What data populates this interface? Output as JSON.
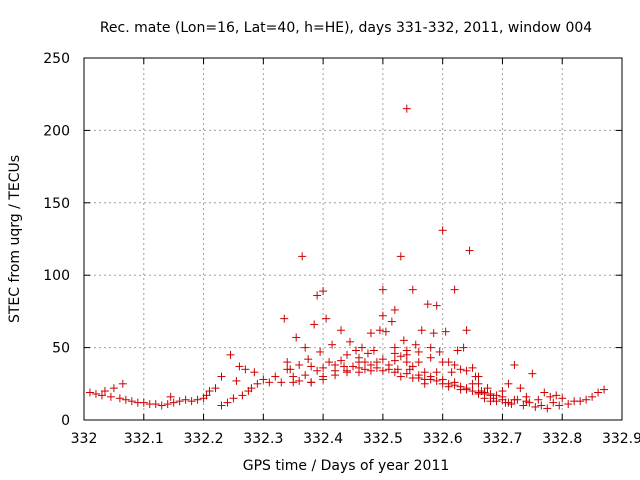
{
  "chart_data": {
    "type": "scatter",
    "title": "Rec. mate (Lon=16, Lat=40, h=HE), days 331-332, 2011, window 004",
    "xlabel": "GPS time / Days of year 2011",
    "ylabel": "STEC from uqrg / TECUs",
    "xlim": [
      332,
      332.9
    ],
    "ylim": [
      0,
      250
    ],
    "xticks": [
      "332",
      "332.1",
      "332.2",
      "332.3",
      "332.4",
      "332.5",
      "332.6",
      "332.7",
      "332.8",
      "332.9"
    ],
    "yticks": [
      "0",
      "50",
      "100",
      "150",
      "200",
      "250"
    ],
    "grid": true,
    "marker": "+",
    "color": "#cc0000",
    "series": [
      {
        "name": "STEC",
        "points": [
          [
            332.01,
            19
          ],
          [
            332.02,
            18
          ],
          [
            332.03,
            17
          ],
          [
            332.035,
            20
          ],
          [
            332.045,
            16
          ],
          [
            332.05,
            22
          ],
          [
            332.06,
            15
          ],
          [
            332.065,
            25
          ],
          [
            332.07,
            14
          ],
          [
            332.08,
            13
          ],
          [
            332.09,
            12
          ],
          [
            332.1,
            12
          ],
          [
            332.11,
            11
          ],
          [
            332.12,
            11
          ],
          [
            332.13,
            10
          ],
          [
            332.14,
            11
          ],
          [
            332.145,
            16
          ],
          [
            332.15,
            12
          ],
          [
            332.16,
            13
          ],
          [
            332.17,
            14
          ],
          [
            332.18,
            13
          ],
          [
            332.19,
            14
          ],
          [
            332.2,
            15
          ],
          [
            332.205,
            17
          ],
          [
            332.21,
            20
          ],
          [
            332.22,
            22
          ],
          [
            332.23,
            10
          ],
          [
            332.23,
            30
          ],
          [
            332.24,
            12
          ],
          [
            332.245,
            45
          ],
          [
            332.25,
            15
          ],
          [
            332.255,
            27
          ],
          [
            332.26,
            37
          ],
          [
            332.265,
            17
          ],
          [
            332.27,
            35
          ],
          [
            332.275,
            20
          ],
          [
            332.28,
            22
          ],
          [
            332.285,
            33
          ],
          [
            332.29,
            25
          ],
          [
            332.3,
            28
          ],
          [
            332.31,
            26
          ],
          [
            332.32,
            30
          ],
          [
            332.33,
            26
          ],
          [
            332.335,
            70
          ],
          [
            332.34,
            40
          ],
          [
            332.345,
            35
          ],
          [
            332.35,
            26
          ],
          [
            332.355,
            57
          ],
          [
            332.36,
            27
          ],
          [
            332.365,
            113
          ],
          [
            332.37,
            50
          ],
          [
            332.375,
            42
          ],
          [
            332.38,
            26
          ],
          [
            332.385,
            66
          ],
          [
            332.39,
            86
          ],
          [
            332.395,
            47
          ],
          [
            332.4,
            89
          ],
          [
            332.4,
            30
          ],
          [
            332.405,
            70
          ],
          [
            332.41,
            40
          ],
          [
            332.415,
            52
          ],
          [
            332.42,
            34
          ],
          [
            332.43,
            62
          ],
          [
            332.435,
            37
          ],
          [
            332.44,
            45
          ],
          [
            332.445,
            54
          ],
          [
            332.45,
            37
          ],
          [
            332.455,
            48
          ],
          [
            332.46,
            40
          ],
          [
            332.465,
            50
          ],
          [
            332.47,
            35
          ],
          [
            332.475,
            46
          ],
          [
            332.48,
            60
          ],
          [
            332.485,
            48
          ],
          [
            332.49,
            36
          ],
          [
            332.495,
            62
          ],
          [
            332.5,
            90
          ],
          [
            332.5,
            72
          ],
          [
            332.505,
            61
          ],
          [
            332.51,
            38
          ],
          [
            332.515,
            68
          ],
          [
            332.52,
            50
          ],
          [
            332.52,
            76
          ],
          [
            332.525,
            35
          ],
          [
            332.53,
            113
          ],
          [
            332.535,
            55
          ],
          [
            332.54,
            215
          ],
          [
            332.54,
            48
          ],
          [
            332.545,
            35
          ],
          [
            332.55,
            90
          ],
          [
            332.555,
            52
          ],
          [
            332.56,
            40
          ],
          [
            332.565,
            62
          ],
          [
            332.57,
            33
          ],
          [
            332.575,
            80
          ],
          [
            332.58,
            50
          ],
          [
            332.585,
            60
          ],
          [
            332.59,
            79
          ],
          [
            332.59,
            33
          ],
          [
            332.595,
            47
          ],
          [
            332.6,
            131
          ],
          [
            332.605,
            61
          ],
          [
            332.61,
            40
          ],
          [
            332.615,
            33
          ],
          [
            332.62,
            90
          ],
          [
            332.625,
            48
          ],
          [
            332.63,
            35
          ],
          [
            332.635,
            50
          ],
          [
            332.64,
            62
          ],
          [
            332.645,
            117
          ],
          [
            332.65,
            36
          ],
          [
            332.655,
            30
          ],
          [
            332.66,
            25
          ],
          [
            332.665,
            20
          ],
          [
            332.67,
            18
          ],
          [
            332.675,
            22
          ],
          [
            332.68,
            17
          ],
          [
            332.685,
            15
          ],
          [
            332.69,
            13
          ],
          [
            332.7,
            20
          ],
          [
            332.705,
            12
          ],
          [
            332.71,
            25
          ],
          [
            332.715,
            11
          ],
          [
            332.72,
            38
          ],
          [
            332.725,
            14
          ],
          [
            332.73,
            22
          ],
          [
            332.735,
            10
          ],
          [
            332.74,
            16
          ],
          [
            332.745,
            12
          ],
          [
            332.75,
            32
          ],
          [
            332.755,
            9
          ],
          [
            332.76,
            14
          ],
          [
            332.765,
            10
          ],
          [
            332.77,
            19
          ],
          [
            332.775,
            8
          ],
          [
            332.78,
            16
          ],
          [
            332.785,
            12
          ],
          [
            332.79,
            17
          ],
          [
            332.795,
            10
          ],
          [
            332.8,
            15
          ],
          [
            332.81,
            11
          ],
          [
            332.82,
            13
          ],
          [
            332.83,
            13
          ],
          [
            332.84,
            14
          ],
          [
            332.85,
            16
          ],
          [
            332.86,
            19
          ],
          [
            332.87,
            21
          ],
          [
            332.34,
            35
          ],
          [
            332.35,
            30
          ],
          [
            332.36,
            38
          ],
          [
            332.37,
            31
          ],
          [
            332.38,
            37
          ],
          [
            332.39,
            34
          ],
          [
            332.4,
            36
          ],
          [
            332.42,
            38
          ],
          [
            332.43,
            41
          ],
          [
            332.46,
            43
          ],
          [
            332.47,
            40
          ],
          [
            332.49,
            40
          ],
          [
            332.51,
            35
          ],
          [
            332.52,
            41
          ],
          [
            332.53,
            44
          ],
          [
            332.54,
            40
          ],
          [
            332.55,
            37
          ],
          [
            332.56,
            31
          ],
          [
            332.57,
            28
          ],
          [
            332.58,
            30
          ],
          [
            332.6,
            28
          ],
          [
            332.61,
            25
          ],
          [
            332.62,
            26
          ],
          [
            332.63,
            23
          ],
          [
            332.64,
            22
          ],
          [
            332.65,
            25
          ],
          [
            332.66,
            18
          ],
          [
            332.67,
            15
          ],
          [
            332.68,
            13
          ],
          [
            332.69,
            17
          ],
          [
            332.7,
            14
          ],
          [
            332.71,
            12
          ],
          [
            332.53,
            30
          ],
          [
            332.55,
            29
          ],
          [
            332.57,
            25
          ],
          [
            332.59,
            27
          ],
          [
            332.61,
            23
          ],
          [
            332.63,
            21
          ],
          [
            332.65,
            20
          ],
          [
            332.67,
            19
          ],
          [
            332.44,
            33
          ],
          [
            332.46,
            33
          ],
          [
            332.48,
            34
          ],
          [
            332.5,
            34
          ],
          [
            332.52,
            33
          ],
          [
            332.54,
            32
          ],
          [
            332.56,
            29
          ],
          [
            332.58,
            28
          ],
          [
            332.6,
            25
          ],
          [
            332.62,
            24
          ],
          [
            332.64,
            21
          ],
          [
            332.66,
            19
          ],
          [
            332.68,
            18
          ],
          [
            332.7,
            16
          ],
          [
            332.72,
            14
          ],
          [
            332.74,
            13
          ],
          [
            332.38,
            26
          ],
          [
            332.4,
            28
          ],
          [
            332.42,
            31
          ],
          [
            332.44,
            34
          ],
          [
            332.46,
            36
          ],
          [
            332.48,
            38
          ],
          [
            332.5,
            42
          ],
          [
            332.52,
            46
          ],
          [
            332.54,
            45
          ],
          [
            332.56,
            47
          ],
          [
            332.58,
            43
          ],
          [
            332.6,
            40
          ],
          [
            332.62,
            38
          ],
          [
            332.64,
            34
          ],
          [
            332.66,
            30
          ]
        ]
      }
    ]
  }
}
